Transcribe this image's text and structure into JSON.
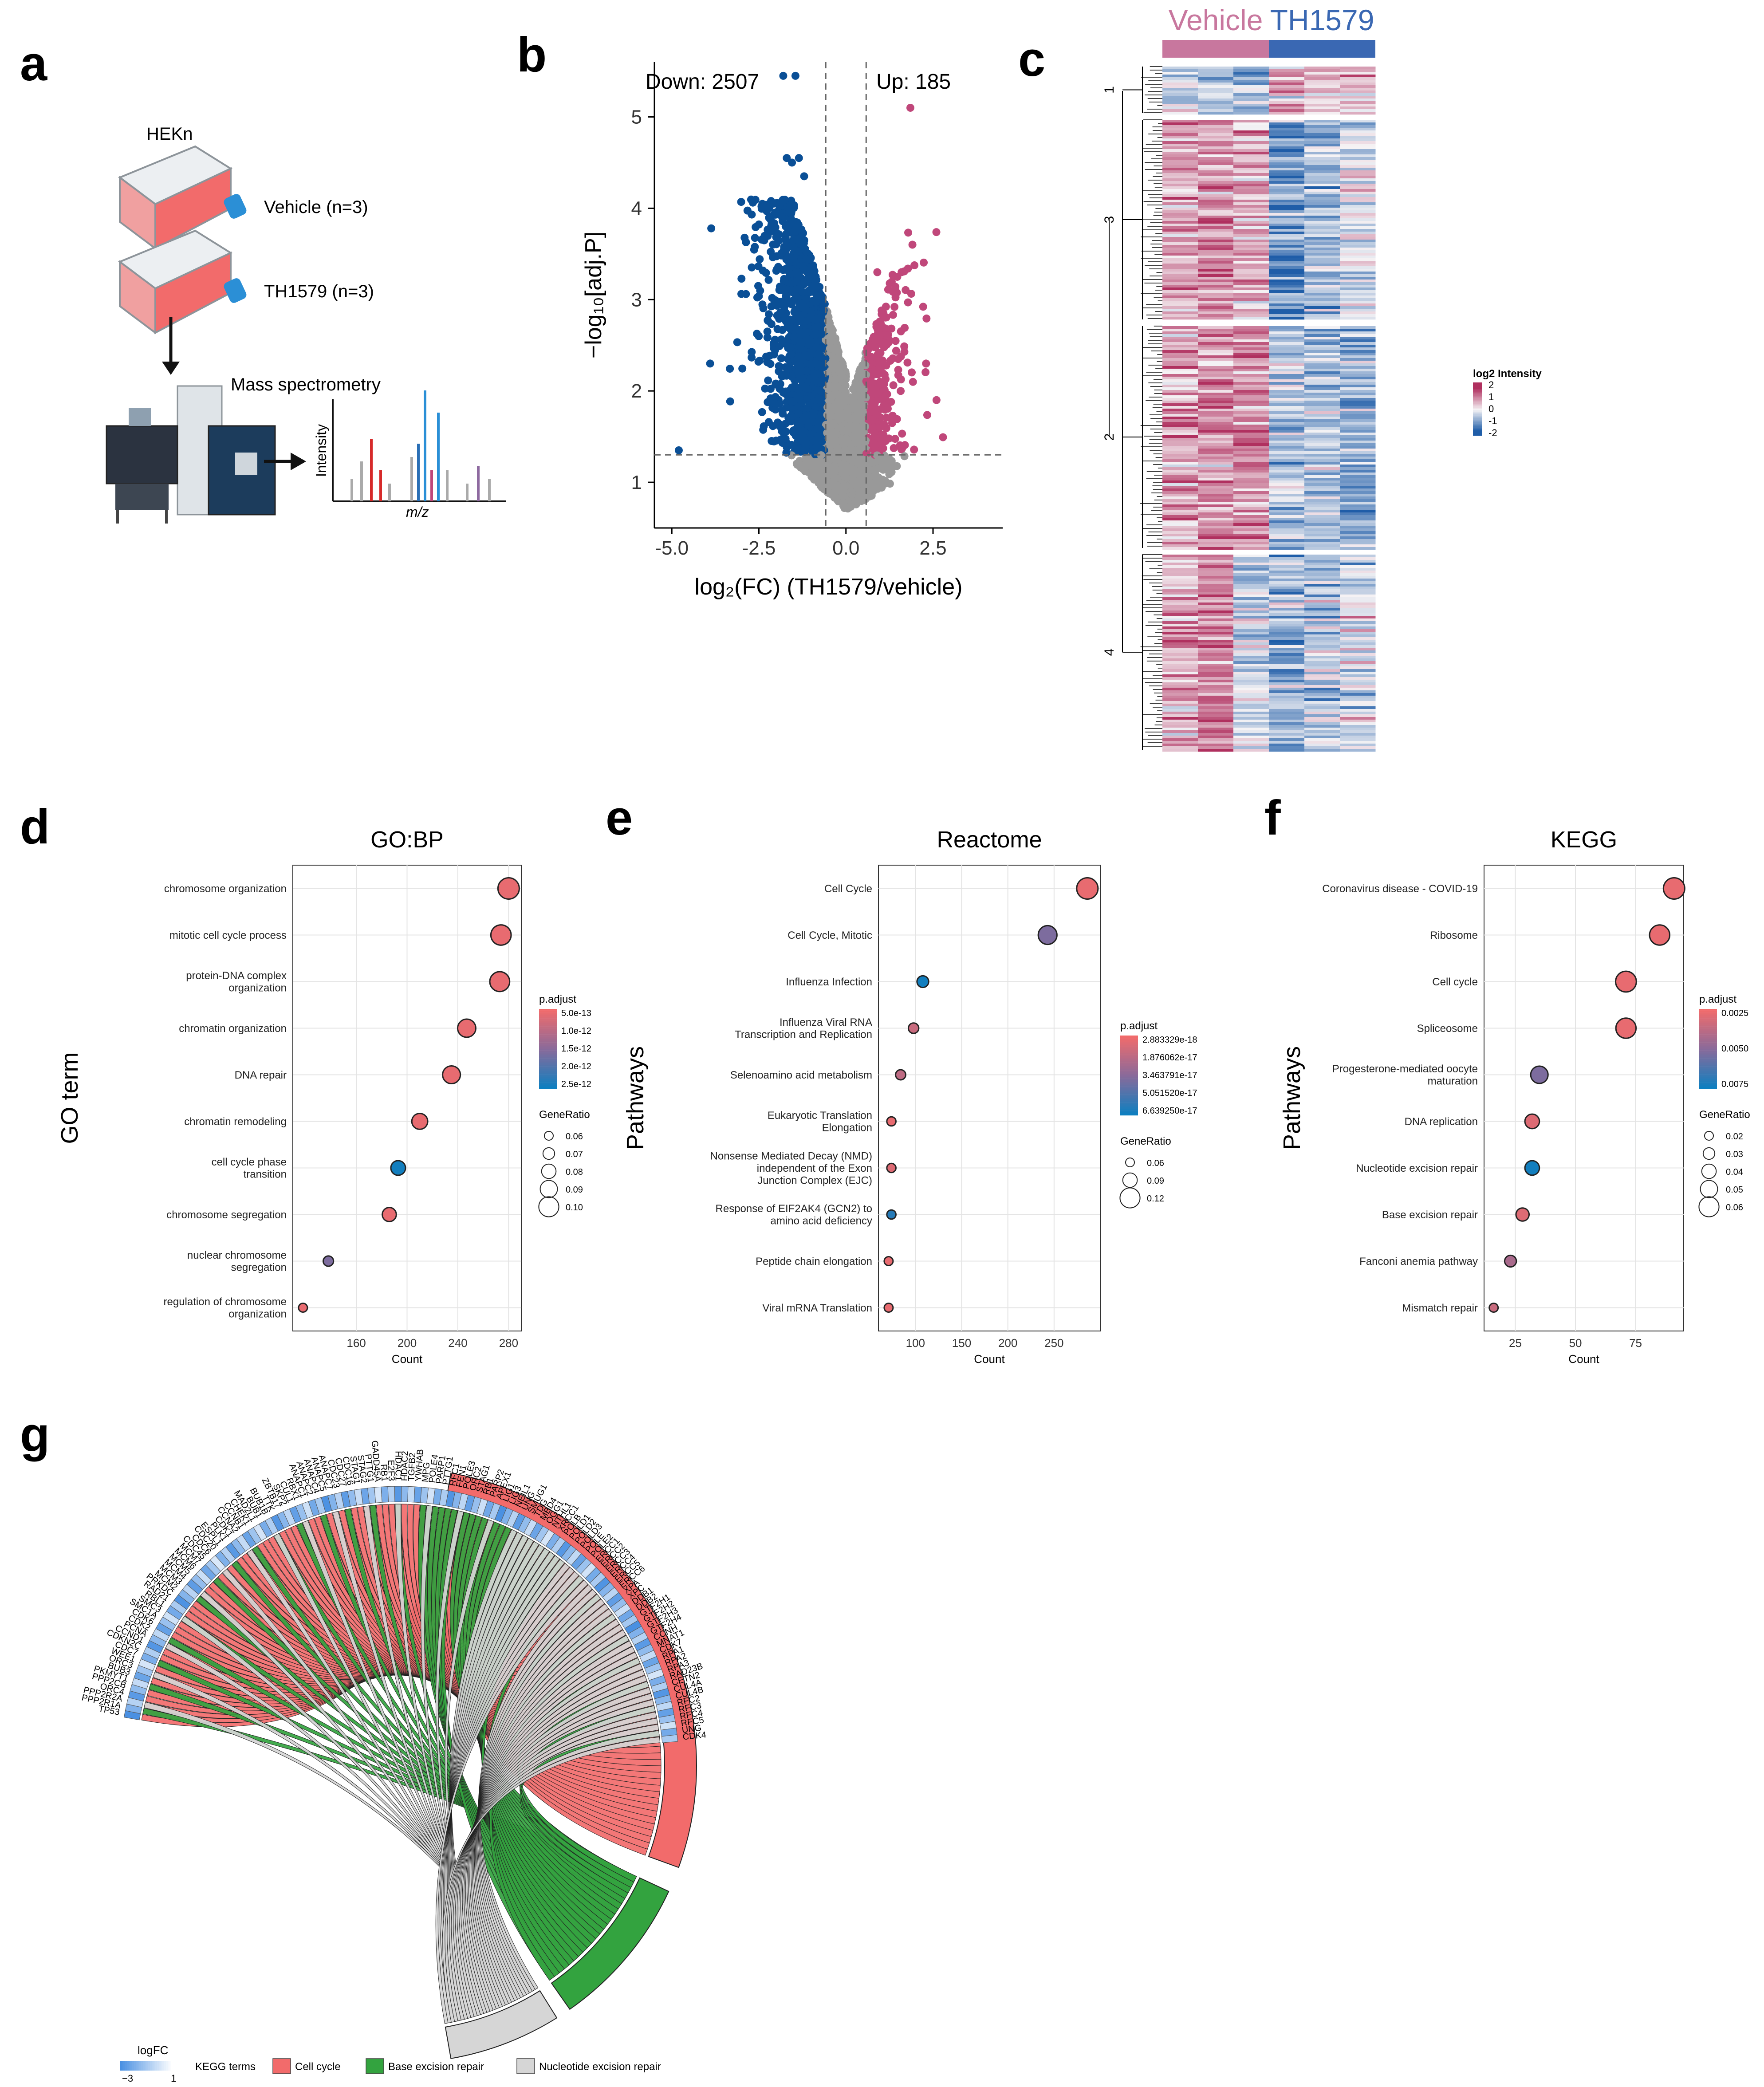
{
  "panel_letters": [
    "a",
    "b",
    "c",
    "d",
    "e",
    "f",
    "g"
  ],
  "panel_a": {
    "cell_line": "HEKn",
    "group1": "Vehicle (n=3)",
    "group2": "TH1579 (n=3)",
    "instrument": "Mass spectrometry",
    "spectrum_ylabel": "Intensity",
    "spectrum_xlabel": "m/z"
  },
  "chart_data": [
    {
      "id": "volcano",
      "type": "scatter",
      "title": "",
      "xlabel": "log₂(FC) (TH1579/vehicle)",
      "ylabel": "−log₁₀[adj.P]",
      "xlim": [
        -5.5,
        4.5
      ],
      "ylim": [
        0.5,
        5.6
      ],
      "xticks": [
        "-5.0",
        "-2.5",
        "0.0",
        "2.5"
      ],
      "yticks": [
        "1",
        "2",
        "3",
        "4",
        "5"
      ],
      "annotations": [
        "Down: 2507",
        "Up: 185"
      ],
      "thresholds": {
        "x": [
          -0.58,
          0.58
        ],
        "y": 1.3
      },
      "colors": {
        "down": "#0a4f96",
        "up": "#c0477a",
        "ns": "#999999"
      },
      "highlight_points": [
        {
          "x": -1.8,
          "y": 5.45,
          "g": "down"
        },
        {
          "x": -1.45,
          "y": 5.45,
          "g": "down"
        },
        {
          "x": -1.7,
          "y": 4.55,
          "g": "down"
        },
        {
          "x": -1.55,
          "y": 4.5,
          "g": "down"
        },
        {
          "x": -1.35,
          "y": 4.55,
          "g": "down"
        },
        {
          "x": -1.2,
          "y": 4.35,
          "g": "down"
        },
        {
          "x": 1.85,
          "y": 5.1,
          "g": "up"
        },
        {
          "x": -4.8,
          "y": 1.35,
          "g": "down"
        },
        {
          "x": -3.9,
          "y": 2.3,
          "g": "down"
        },
        {
          "x": 2.6,
          "y": 1.9,
          "g": "up"
        },
        {
          "x": 2.3,
          "y": 2.3,
          "g": "up"
        },
        {
          "x": 0.9,
          "y": 3.3,
          "g": "up"
        }
      ]
    },
    {
      "id": "heatmap",
      "type": "heatmap",
      "columns_groups": [
        "Vehicle",
        "TH1579"
      ],
      "cluster_labels": [
        "1",
        "3",
        "2",
        "4"
      ],
      "legend_title": "log2 Intensity",
      "legend_ticks": [
        "2",
        "1",
        "0",
        "-1",
        "-2"
      ],
      "colors": {
        "vehicle": "#c8779e",
        "th1579": "#3a68b3",
        "high": "#b0305f",
        "mid": "#f5f3f5",
        "low": "#1f5da8"
      }
    },
    {
      "id": "gobp",
      "type": "scatter",
      "title": "GO:BP",
      "xlabel": "Count",
      "ylabel": "GO term",
      "xlim": [
        110,
        290
      ],
      "xticks": [
        "160",
        "200",
        "240",
        "280"
      ],
      "legend_color_title": "p.adjust",
      "legend_color_ticks": [
        "5.0e-13",
        "1.0e-12",
        "1.5e-12",
        "2.0e-12",
        "2.5e-12"
      ],
      "legend_size_title": "GeneRatio",
      "legend_size_ticks": [
        "0.06",
        "0.07",
        "0.08",
        "0.09",
        "0.10"
      ],
      "terms": [
        {
          "label": "chromosome organization",
          "count": 280,
          "ratio": 0.105,
          "p": 0.05
        },
        {
          "label": "mitotic cell cycle process",
          "count": 274,
          "ratio": 0.1,
          "p": 0.05
        },
        {
          "label": "protein-DNA complex organization",
          "count": 273,
          "ratio": 0.098,
          "p": 0.05
        },
        {
          "label": "chromatin organization",
          "count": 247,
          "ratio": 0.09,
          "p": 0.05
        },
        {
          "label": "DNA repair",
          "count": 235,
          "ratio": 0.088,
          "p": 0.05
        },
        {
          "label": "chromatin remodeling",
          "count": 210,
          "ratio": 0.079,
          "p": 0.05
        },
        {
          "label": "cell cycle phase transition",
          "count": 193,
          "ratio": 0.073,
          "p": 0.98
        },
        {
          "label": "chromosome segregation",
          "count": 186,
          "ratio": 0.07,
          "p": 0.05
        },
        {
          "label": "nuclear chromosome segregation",
          "count": 138,
          "ratio": 0.052,
          "p": 0.55
        },
        {
          "label": "regulation of chromosome organization",
          "count": 118,
          "ratio": 0.045,
          "p": 0.05
        }
      ]
    },
    {
      "id": "reactome",
      "type": "scatter",
      "title": "Reactome",
      "xlabel": "Count",
      "ylabel": "Pathways",
      "xlim": [
        60,
        300
      ],
      "xticks": [
        "100",
        "150",
        "200",
        "250"
      ],
      "legend_color_title": "p.adjust",
      "legend_color_ticks": [
        "2.883329e-18",
        "1.876062e-17",
        "3.463791e-17",
        "5.051520e-17",
        "6.639250e-17"
      ],
      "legend_size_title": "GeneRatio",
      "legend_size_ticks": [
        "0.06",
        "0.09",
        "0.12"
      ],
      "terms": [
        {
          "label": "Cell Cycle",
          "count": 286,
          "ratio": 0.135,
          "p": 0.05
        },
        {
          "label": "Cell Cycle, Mitotic",
          "count": 243,
          "ratio": 0.115,
          "p": 0.55
        },
        {
          "label": "Influenza Infection",
          "count": 108,
          "ratio": 0.06,
          "p": 0.98
        },
        {
          "label": "Influenza Viral RNA Transcription and Replication",
          "count": 98,
          "ratio": 0.05,
          "p": 0.2
        },
        {
          "label": "Selenoamino acid metabolism",
          "count": 84,
          "ratio": 0.048,
          "p": 0.25
        },
        {
          "label": "Eukaryotic Translation Elongation",
          "count": 74,
          "ratio": 0.04,
          "p": 0.05
        },
        {
          "label": "Nonsense Mediated Decay (NMD) independent of the Exon Junction Complex (EJC)",
          "count": 74,
          "ratio": 0.04,
          "p": 0.1
        },
        {
          "label": "Response of EIF2AK4 (GCN2) to amino acid deficiency",
          "count": 74,
          "ratio": 0.04,
          "p": 0.9
        },
        {
          "label": "Peptide chain elongation",
          "count": 71,
          "ratio": 0.038,
          "p": 0.05
        },
        {
          "label": "Viral mRNA Translation",
          "count": 71,
          "ratio": 0.038,
          "p": 0.05
        }
      ]
    },
    {
      "id": "kegg",
      "type": "scatter",
      "title": "KEGG",
      "xlabel": "Count",
      "ylabel": "Pathways",
      "xlim": [
        12,
        95
      ],
      "xticks": [
        "25",
        "50",
        "75"
      ],
      "legend_color_title": "p.adjust",
      "legend_color_ticks": [
        "0.0025",
        "0.0050",
        "0.0075"
      ],
      "legend_size_title": "GeneRatio",
      "legend_size_ticks": [
        "0.02",
        "0.03",
        "0.04",
        "0.05",
        "0.06"
      ],
      "terms": [
        {
          "label": "Coronavirus disease - COVID-19",
          "count": 91,
          "ratio": 0.064,
          "p": 0.05
        },
        {
          "label": "Ribosome",
          "count": 85,
          "ratio": 0.06,
          "p": 0.05
        },
        {
          "label": "Cell cycle",
          "count": 71,
          "ratio": 0.062,
          "p": 0.05
        },
        {
          "label": "Spliceosome",
          "count": 71,
          "ratio": 0.06,
          "p": 0.05
        },
        {
          "label": "Progesterone-mediated oocyte maturation",
          "count": 35,
          "ratio": 0.05,
          "p": 0.55
        },
        {
          "label": "DNA replication",
          "count": 32,
          "ratio": 0.04,
          "p": 0.1
        },
        {
          "label": "Nucleotide excision repair",
          "count": 32,
          "ratio": 0.04,
          "p": 0.98
        },
        {
          "label": "Base excision repair",
          "count": 28,
          "ratio": 0.035,
          "p": 0.1
        },
        {
          "label": "Fanconi anemia pathway",
          "count": 23,
          "ratio": 0.03,
          "p": 0.35
        },
        {
          "label": "Mismatch repair",
          "count": 16,
          "ratio": 0.02,
          "p": 0.2
        }
      ]
    },
    {
      "id": "chord",
      "type": "diagram",
      "legend_logfc_title": "logFC",
      "legend_logfc_ticks": [
        "−3",
        "1"
      ],
      "legend_terms_title": "KEGG terms",
      "terms": [
        {
          "name": "Cell cycle",
          "color": "#f26b6b"
        },
        {
          "name": "Base excision repair",
          "color": "#33a33f"
        },
        {
          "name": "Nucleotide excision repair",
          "color": "#d6d6d6"
        }
      ],
      "genes": [
        "TP53",
        "PPP2R1A",
        "PPP2R2A",
        "ORC4",
        "PPP2CB",
        "PKMYT1",
        "BUB3",
        "ORC3",
        "WEE1",
        "CDC7",
        "CDKN2C",
        "CCND1",
        "PCNA",
        "CDK2",
        "CDK6",
        "SMC1A",
        "SMC3",
        "RBL1",
        "RAD21",
        "PRKDC",
        "MCM2",
        "MCM3",
        "MCM4",
        "MCM5",
        "MCM6",
        "MCM7",
        "CDC45",
        "CDC6",
        "CDC20",
        "ESPL1",
        "PLK1",
        "CDK1",
        "CCNA2",
        "CCNB1",
        "CHEK1",
        "MAD2L1",
        "BUB1",
        "BUB1B",
        "TTK",
        "ZBTB17",
        "SKP2",
        "CUL1",
        "RBX1",
        "ANAPC1",
        "ANAPC2",
        "ANAPC4",
        "ANAPC5",
        "ANAPC7",
        "CDC23",
        "CDC27",
        "CDC16",
        "STAG1",
        "STAG2",
        "PTTG1",
        "GADD45A",
        "RB1",
        "E2F3",
        "HDAC1",
        "HDAC2",
        "TGFB2",
        "YWHAB",
        "MPG",
        "POLE4",
        "PARP1",
        "PTTG1",
        "RFC1",
        "FEN1",
        "POLE3",
        "ORC2",
        "STAG1",
        "RB1",
        "PARP2",
        "APEX1",
        "LIG1",
        "LIG3",
        "NEIL1",
        "UNG",
        "SMUG1",
        "TDG",
        "MBD4",
        "OGG1",
        "NTHL1",
        "XRCC1",
        "POLB",
        "POLD1",
        "POLD2",
        "POLD3",
        "POLE",
        "POLE2",
        "ERCC1",
        "ERCC2",
        "ERCC3",
        "ERCC4",
        "ERCC5",
        "ERCC6",
        "XPA",
        "XPC",
        "DDB1",
        "DDB2",
        "GTF2H1",
        "GTF2H2",
        "GTF2H3",
        "GTF2H4",
        "CCNH",
        "MNAT1",
        "CDK7",
        "RPA1",
        "RPA2",
        "RPA3",
        "RAD23B",
        "CETN2",
        "CUL4A",
        "CUL4B",
        "RFC2",
        "RFC3",
        "RFC4",
        "RFC5",
        "UNG",
        "CDK4"
      ]
    }
  ]
}
